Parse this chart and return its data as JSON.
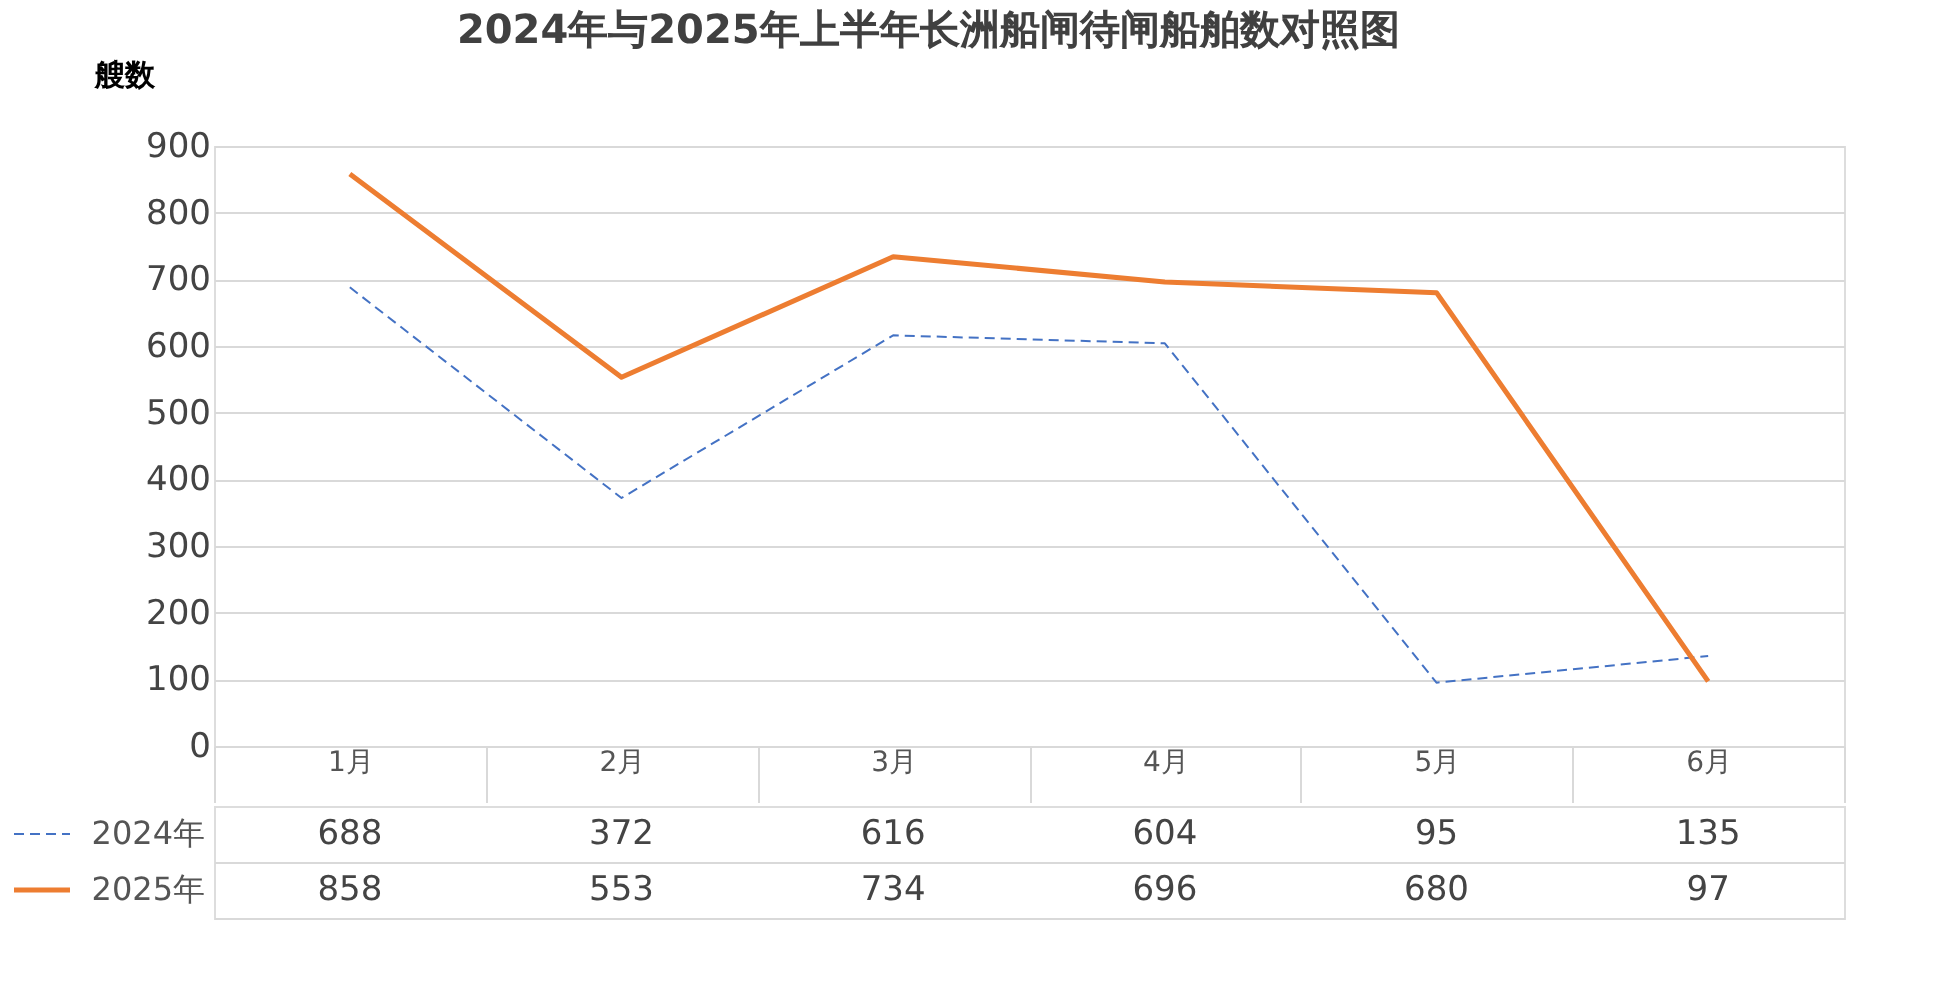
{
  "chart_data": {
    "type": "line",
    "title": "2024年与2025年上半年长洲船闸待闸船舶数对照图",
    "ylabel": "艘数",
    "categories": [
      "1月",
      "2月",
      "3月",
      "4月",
      "5月",
      "6月"
    ],
    "series": [
      {
        "name": "2024年",
        "color": "#4472c4",
        "line_style": "dashed",
        "values": [
          688,
          372,
          616,
          604,
          95,
          135
        ]
      },
      {
        "name": "2025年",
        "color": "#ed7d31",
        "line_style": "solid",
        "values": [
          858,
          553,
          734,
          696,
          680,
          97
        ]
      }
    ],
    "ylim": [
      0,
      900
    ],
    "yticks": [
      0,
      100,
      200,
      300,
      400,
      500,
      600,
      700,
      800,
      900
    ],
    "grid": "y",
    "legend": "bottom",
    "data_labels": true,
    "marker": "none"
  }
}
